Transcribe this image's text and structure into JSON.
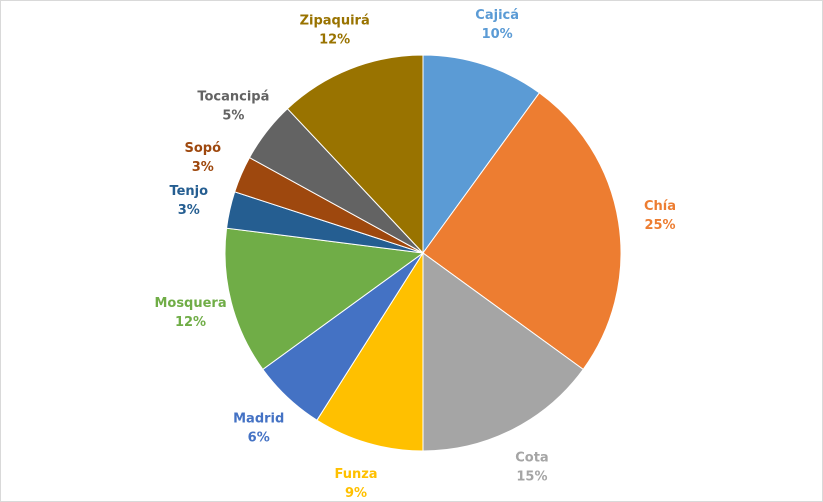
{
  "chart_data": {
    "type": "pie",
    "categories": [
      "Cajicá",
      "Chía",
      "Cota",
      "Funza",
      "Madrid",
      "Mosquera",
      "Tenjo",
      "Sopó",
      "Tocancipá",
      "Zipaquirá"
    ],
    "values": [
      10,
      25,
      15,
      9,
      6,
      12,
      3,
      3,
      5,
      12
    ],
    "value_labels": [
      "10%",
      "25%",
      "15%",
      "9%",
      "6%",
      "12%",
      "3%",
      "3%",
      "5%",
      "12%"
    ],
    "colors": [
      "#5b9bd5",
      "#ed7d31",
      "#a5a5a5",
      "#ffc000",
      "#4472c4",
      "#70ad47",
      "#255e91",
      "#9e480e",
      "#636363",
      "#997300"
    ]
  }
}
